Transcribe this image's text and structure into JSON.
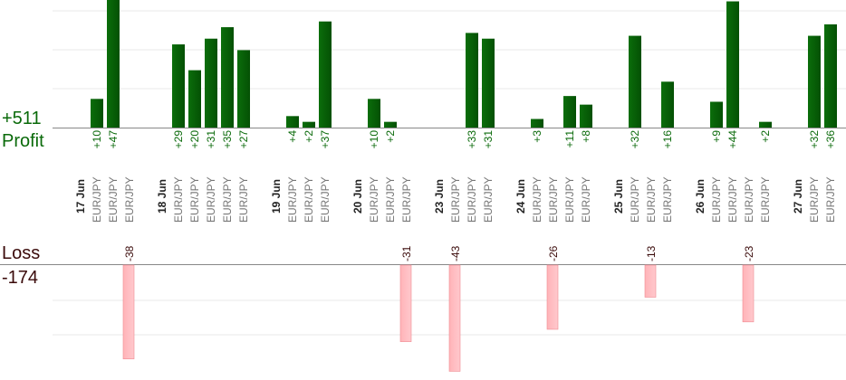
{
  "summary": {
    "profit_total": "+511",
    "profit_label": "Profit",
    "loss_label": "Loss",
    "loss_total": "-174"
  },
  "colors": {
    "profit_bar": "#0b6e0b",
    "profit_bar_dark": "#045004",
    "profit_text": "#0a6a0a",
    "loss_bar": "#ffb3b8",
    "loss_bar_edge": "#f08a92",
    "loss_text": "#3a0a0a",
    "date_text": "#222222",
    "pair_text": "#777777",
    "grid": "#e8e8e8",
    "axis": "#888888"
  },
  "chart_data": {
    "type": "bar",
    "title": "",
    "xlabel": "",
    "ylabel": "",
    "legend": "none",
    "grid": true,
    "profit_ylim": [
      0,
      47
    ],
    "loss_ylim": [
      0,
      -43
    ],
    "categories": [
      {
        "date": "17 Jun",
        "pairs": [
          "EUR/JPY",
          "EUR/JPY",
          "EUR/JPY"
        ],
        "values": [
          10,
          47,
          -38
        ]
      },
      {
        "date": "18 Jun",
        "pairs": [
          "EUR/JPY",
          "EUR/JPY",
          "EUR/JPY",
          "EUR/JPY",
          "EUR/JPY"
        ],
        "values": [
          29,
          20,
          31,
          35,
          27
        ]
      },
      {
        "date": "19 Jun",
        "pairs": [
          "EUR/JPY",
          "EUR/JPY",
          "EUR/JPY"
        ],
        "values": [
          4,
          2,
          37
        ]
      },
      {
        "date": "20 Jun",
        "pairs": [
          "EUR/JPY",
          "EUR/JPY",
          "EUR/JPY"
        ],
        "values": [
          10,
          2,
          -31
        ]
      },
      {
        "date": "23 Jun",
        "pairs": [
          "EUR/JPY",
          "EUR/JPY",
          "EUR/JPY"
        ],
        "values": [
          -43,
          33,
          31
        ]
      },
      {
        "date": "24 Jun",
        "pairs": [
          "EUR/JPY",
          "EUR/JPY",
          "EUR/JPY",
          "EUR/JPY"
        ],
        "values": [
          3,
          -26,
          11,
          8
        ]
      },
      {
        "date": "25 Jun",
        "pairs": [
          "EUR/JPY",
          "EUR/JPY",
          "EUR/JPY"
        ],
        "values": [
          32,
          -13,
          16
        ]
      },
      {
        "date": "26 Jun",
        "pairs": [
          "EUR/JPY",
          "EUR/JPY",
          "EUR/JPY",
          "EUR/JPY"
        ],
        "values": [
          9,
          44,
          -23,
          2
        ]
      },
      {
        "date": "27 Jun",
        "pairs": [
          "EUR/JPY",
          "EUR/JPY"
        ],
        "values": [
          32,
          36
        ]
      }
    ]
  }
}
